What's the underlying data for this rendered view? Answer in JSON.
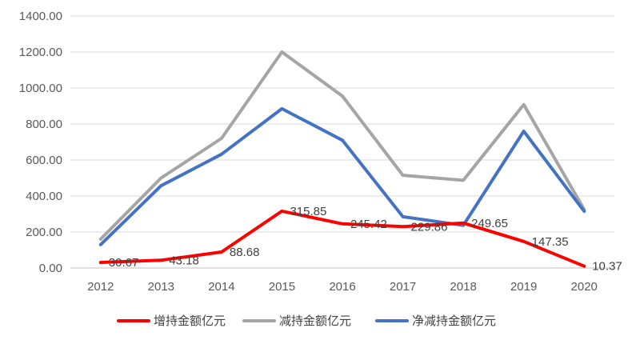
{
  "chart_data": {
    "type": "line",
    "title": "",
    "xlabel": "",
    "ylabel": "",
    "categories": [
      "2012",
      "2013",
      "2014",
      "2015",
      "2016",
      "2017",
      "2018",
      "2019",
      "2020"
    ],
    "ylim": [
      0,
      1400
    ],
    "yticks": [
      "0.00",
      "200.00",
      "400.00",
      "600.00",
      "800.00",
      "1000.00",
      "1200.00",
      "1400.00"
    ],
    "grid": true,
    "legend_position": "bottom",
    "series": [
      {
        "name": "增持金额亿元",
        "color": "#ff0000",
        "values": [
          30.67,
          43.18,
          88.68,
          315.85,
          245.42,
          229.86,
          249.65,
          147.35,
          10.37
        ],
        "labels": [
          "30.67",
          "43.18",
          "88.68",
          "315.85",
          "245.42",
          "229.86",
          "249.65",
          "147.35",
          "10.37"
        ]
      },
      {
        "name": "减持金额亿元",
        "color": "#a5a5a5",
        "values": [
          160,
          500,
          720,
          1200,
          955,
          515,
          487,
          908,
          325
        ]
      },
      {
        "name": "净减持金额亿元",
        "color": "#4472c4",
        "values": [
          130,
          457,
          632,
          885,
          710,
          285,
          237,
          760,
          315
        ]
      }
    ]
  }
}
